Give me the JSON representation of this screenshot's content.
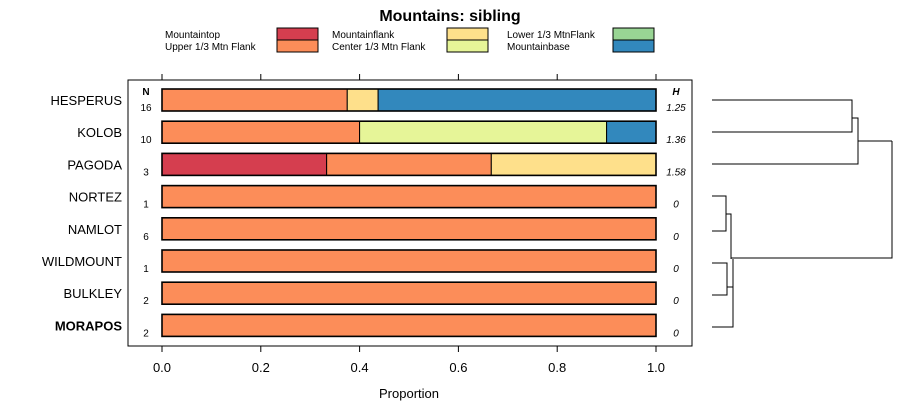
{
  "chart_data": {
    "type": "bar",
    "stacked": "proportion",
    "title": "Mountains: sibling",
    "xlabel": "Proportion",
    "xlim": [
      0,
      1
    ],
    "xticks": [
      "0.0",
      "0.2",
      "0.4",
      "0.6",
      "0.8",
      "1.0"
    ],
    "n_header": "N",
    "h_header": "H",
    "legend": [
      {
        "name": "Mountaintop",
        "color": "#d53e4f"
      },
      {
        "name": "Upper 1/3 Mtn Flank",
        "color": "#fc8d59"
      },
      {
        "name": "Mountainflank",
        "color": "#fee08b"
      },
      {
        "name": "Center 1/3 Mtn Flank",
        "color": "#e6f598"
      },
      {
        "name": "Lower 1/3 MtnFlank",
        "color": "#99d594"
      },
      {
        "name": "Mountainbase",
        "color": "#3288bd"
      }
    ],
    "rows": [
      {
        "label": "HESPERUS",
        "n": "16",
        "h": "1.25",
        "bold": false,
        "segments": [
          {
            "category": "Upper 1/3 Mtn Flank",
            "value": 0.375
          },
          {
            "category": "Mountainflank",
            "value": 0.0625
          },
          {
            "category": "Mountainbase",
            "value": 0.5625
          }
        ]
      },
      {
        "label": "KOLOB",
        "n": "10",
        "h": "1.36",
        "bold": false,
        "segments": [
          {
            "category": "Upper 1/3 Mtn Flank",
            "value": 0.4
          },
          {
            "category": "Center 1/3 Mtn Flank",
            "value": 0.5
          },
          {
            "category": "Mountainbase",
            "value": 0.1
          }
        ]
      },
      {
        "label": "PAGODA",
        "n": "3",
        "h": "1.58",
        "bold": false,
        "segments": [
          {
            "category": "Mountaintop",
            "value": 0.3333
          },
          {
            "category": "Upper 1/3 Mtn Flank",
            "value": 0.3333
          },
          {
            "category": "Mountainflank",
            "value": 0.3334
          }
        ]
      },
      {
        "label": "NORTEZ",
        "n": "1",
        "h": "0",
        "bold": false,
        "segments": [
          {
            "category": "Upper 1/3 Mtn Flank",
            "value": 1.0
          }
        ]
      },
      {
        "label": "NAMLOT",
        "n": "6",
        "h": "0",
        "bold": false,
        "segments": [
          {
            "category": "Upper 1/3 Mtn Flank",
            "value": 1.0
          }
        ]
      },
      {
        "label": "WILDMOUNT",
        "n": "1",
        "h": "0",
        "bold": false,
        "segments": [
          {
            "category": "Upper 1/3 Mtn Flank",
            "value": 1.0
          }
        ]
      },
      {
        "label": "BULKLEY",
        "n": "2",
        "h": "0",
        "bold": false,
        "segments": [
          {
            "category": "Upper 1/3 Mtn Flank",
            "value": 1.0
          }
        ]
      },
      {
        "label": "MORAPOS",
        "n": "2",
        "h": "0",
        "bold": true,
        "segments": [
          {
            "category": "Upper 1/3 Mtn Flank",
            "value": 1.0
          }
        ]
      }
    ]
  }
}
